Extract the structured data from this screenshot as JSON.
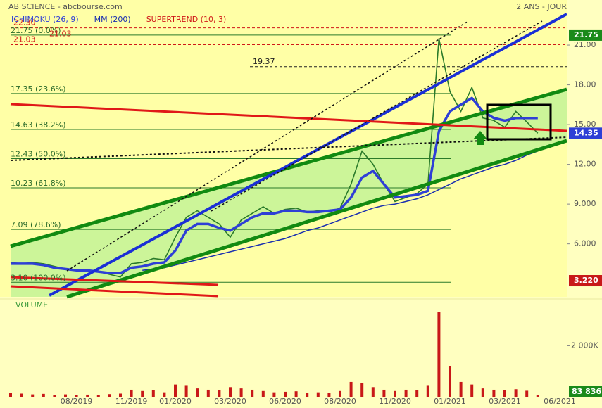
{
  "chart_data": {
    "type": "line",
    "title": "AB SCIENCE - abcbourse.com",
    "subtitle": "2 ANS - JOUR",
    "categories": [
      null,
      null,
      null,
      null,
      null,
      null,
      "08/2019",
      null,
      null,
      null,
      null,
      "11/2019",
      null,
      null,
      null,
      "01/2020",
      null,
      null,
      null,
      null,
      "03/2020",
      null,
      null,
      null,
      null,
      "06/2020",
      null,
      null,
      null,
      null,
      "08/2020",
      null,
      null,
      null,
      null,
      "11/2020",
      null,
      null,
      null,
      null,
      "01/2021",
      null,
      null,
      null,
      null,
      "03/2021",
      null,
      null,
      null,
      null,
      "06/2021"
    ],
    "series": [
      {
        "color": "#2a7a2a",
        "values": [
          4.6,
          4.5,
          4.6,
          4.5,
          4.3,
          4.1,
          4.0,
          4.0,
          3.9,
          3.7,
          3.5,
          4.5,
          4.6,
          4.9,
          4.8,
          6.5,
          8.0,
          8.5,
          8.0,
          7.5,
          6.5,
          7.8,
          8.3,
          8.8,
          8.3,
          8.6,
          8.7,
          8.4,
          8.5,
          8.4,
          8.7,
          10.5,
          13.0,
          12.0,
          10.5,
          9.2,
          9.5,
          9.8,
          10.5,
          21.5,
          17.5,
          16.0,
          17.8,
          15.5,
          15.3,
          14.8,
          16.0,
          15.2,
          14.35,
          null,
          null
        ]
      },
      {
        "name": "ICHIMOKU (26, 9)",
        "color": "#2e3fd6",
        "values": [
          4.5,
          4.5,
          4.5,
          4.4,
          4.2,
          4.1,
          4.0,
          4.0,
          3.9,
          3.8,
          3.8,
          4.2,
          4.3,
          4.5,
          4.6,
          5.5,
          7.0,
          7.5,
          7.5,
          7.2,
          7.0,
          7.5,
          8.0,
          8.3,
          8.3,
          8.5,
          8.5,
          8.4,
          8.4,
          8.5,
          8.6,
          9.5,
          11.0,
          11.5,
          10.5,
          9.5,
          9.6,
          9.7,
          10.0,
          14.5,
          16.0,
          16.5,
          17.0,
          16.0,
          15.5,
          15.3,
          15.5,
          15.5,
          15.5,
          null,
          null
        ]
      },
      {
        "name": "MM (200)",
        "color": "#1a2fb0",
        "values": [
          null,
          null,
          null,
          null,
          null,
          null,
          null,
          null,
          null,
          null,
          null,
          null,
          4.0,
          4.1,
          4.2,
          4.4,
          4.6,
          4.8,
          5.0,
          5.2,
          5.4,
          5.6,
          5.8,
          6.0,
          6.2,
          6.4,
          6.7,
          7.0,
          7.2,
          7.5,
          7.8,
          8.1,
          8.4,
          8.7,
          8.9,
          9.0,
          9.2,
          9.4,
          9.7,
          10.1,
          10.5,
          10.9,
          11.2,
          11.5,
          11.8,
          12.0,
          12.3,
          12.7,
          13.0,
          null,
          null
        ]
      }
    ],
    "supertrend_label": {
      "text": "SUPERTREND (10, 3)",
      "color": "#d01818"
    },
    "ylim": [
      2,
      24.4
    ],
    "yticks": [
      {
        "value": 21,
        "label": "21.00"
      },
      {
        "value": 18,
        "label": "18.00"
      },
      {
        "value": 15,
        "label": "15.00"
      },
      {
        "value": 12,
        "label": "12.00"
      },
      {
        "value": 9,
        "label": "9.000"
      },
      {
        "value": 6,
        "label": "6.000"
      }
    ],
    "fib_levels": [
      {
        "value": 21.75,
        "label": "21.75  (0.0%)"
      },
      {
        "value": 17.35,
        "label": "17.35  (23.6%)"
      },
      {
        "value": 14.63,
        "label": "14.63  (38.2%)"
      },
      {
        "value": 12.43,
        "label": "12.43  (50.0%)"
      },
      {
        "value": 10.23,
        "label": "10.23  (61.8%)"
      },
      {
        "value": 7.09,
        "label": "7.09  (78.6%)"
      },
      {
        "value": 3.1,
        "label": "3.10  (100.0%)"
      }
    ],
    "levels": [
      {
        "value": 22.3,
        "label": "22.30",
        "color": "#d01818"
      },
      {
        "value": 21.03,
        "label": "21.03",
        "color": "#d01818"
      },
      {
        "value": 19.37,
        "label": "19.37",
        "color": "#222222"
      }
    ],
    "last_price": {
      "value": 21.03,
      "label": "21.03"
    },
    "price_tags": [
      {
        "value": 21.75,
        "label": "21.75",
        "color": "#1a8a1a"
      },
      {
        "value": 14.35,
        "label": "14.35",
        "color": "#2e3fd6"
      },
      {
        "value": 3.22,
        "label": "3.220",
        "color": "#c81818"
      }
    ],
    "volume": {
      "label": "VOLUME",
      "color": "#c81818",
      "values": [
        180000,
        150000,
        120000,
        140000,
        100000,
        120000,
        90000,
        110000,
        100000,
        130000,
        150000,
        300000,
        250000,
        280000,
        200000,
        500000,
        450000,
        350000,
        300000,
        280000,
        400000,
        350000,
        300000,
        250000,
        200000,
        220000,
        240000,
        180000,
        200000,
        190000,
        250000,
        600000,
        550000,
        400000,
        300000,
        250000,
        300000,
        280000,
        450000,
        3300000,
        1200000,
        600000,
        500000,
        350000,
        300000,
        280000,
        320000,
        260000,
        83836,
        null,
        null
      ],
      "ylim": [
        0,
        3400000
      ],
      "yticks": [
        {
          "value": 2000000,
          "label": "2 000K"
        }
      ],
      "tag": {
        "value": 83836,
        "label": "83 836",
        "color": "#1a8a1a"
      }
    }
  }
}
